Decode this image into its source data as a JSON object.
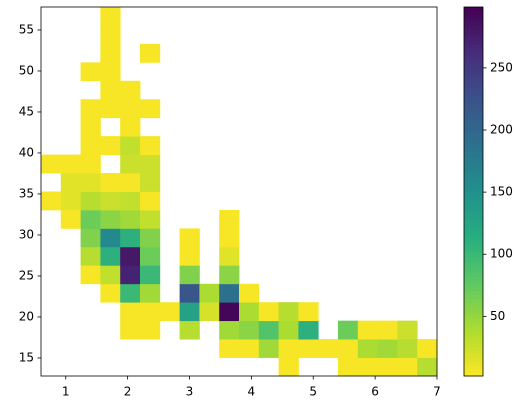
{
  "chart_data": {
    "type": "hist2d",
    "xbins": [
      0.6,
      0.92,
      1.24,
      1.56,
      1.88,
      2.2,
      2.52,
      2.84,
      3.16,
      3.48,
      3.8,
      4.12,
      4.44,
      4.76,
      5.08,
      5.4,
      5.72,
      6.04,
      6.36,
      6.68,
      7.0
    ],
    "ybins": [
      12.8,
      15.05,
      17.3,
      19.55,
      21.8,
      24.05,
      26.3,
      28.55,
      30.8,
      33.05,
      35.3,
      37.55,
      39.8,
      42.05,
      44.3,
      46.55,
      48.8,
      51.05,
      53.3,
      55.55,
      57.8
    ],
    "counts": [
      [
        null,
        null,
        null,
        null,
        null,
        null,
        null,
        null,
        null,
        null,
        null,
        null,
        5,
        null,
        null,
        5,
        5,
        5,
        5,
        35
      ],
      [
        null,
        null,
        null,
        null,
        null,
        null,
        null,
        null,
        null,
        5,
        5,
        45,
        5,
        5,
        5,
        5,
        40,
        45,
        35,
        5
      ],
      [
        null,
        null,
        null,
        null,
        5,
        5,
        null,
        35,
        null,
        45,
        55,
        85,
        40,
        110,
        null,
        70,
        5,
        5,
        25,
        null
      ],
      [
        null,
        null,
        null,
        null,
        5,
        5,
        5,
        130,
        20,
        295,
        40,
        5,
        35,
        5,
        null,
        null,
        null,
        null,
        null,
        null
      ],
      [
        null,
        null,
        null,
        5,
        100,
        45,
        null,
        220,
        40,
        190,
        5,
        null,
        null,
        null,
        null,
        null,
        null,
        null,
        null,
        null
      ],
      [
        null,
        null,
        5,
        30,
        270,
        100,
        null,
        60,
        null,
        55,
        null,
        null,
        null,
        null,
        null,
        null,
        null,
        null,
        null,
        null
      ],
      [
        null,
        null,
        35,
        110,
        280,
        70,
        null,
        5,
        null,
        15,
        null,
        null,
        null,
        null,
        null,
        null,
        null,
        null,
        null,
        null
      ],
      [
        null,
        null,
        60,
        160,
        110,
        60,
        null,
        5,
        null,
        5,
        null,
        null,
        null,
        null,
        null,
        null,
        null,
        null,
        null,
        null
      ],
      [
        null,
        5,
        70,
        55,
        45,
        30,
        null,
        null,
        null,
        5,
        null,
        null,
        null,
        null,
        null,
        null,
        null,
        null,
        null,
        null
      ],
      [
        5,
        15,
        35,
        25,
        30,
        5,
        null,
        null,
        null,
        null,
        null,
        null,
        null,
        null,
        null,
        null,
        null,
        null,
        null,
        null
      ],
      [
        null,
        15,
        15,
        5,
        5,
        25,
        null,
        null,
        null,
        null,
        null,
        null,
        null,
        null,
        null,
        null,
        null,
        null,
        null,
        null
      ],
      [
        5,
        5,
        5,
        null,
        25,
        25,
        null,
        null,
        null,
        null,
        null,
        null,
        null,
        null,
        null,
        null,
        null,
        null,
        null,
        null
      ],
      [
        null,
        null,
        5,
        5,
        30,
        5,
        null,
        null,
        null,
        null,
        null,
        null,
        null,
        null,
        null,
        null,
        null,
        null,
        null,
        null
      ],
      [
        null,
        null,
        5,
        null,
        5,
        null,
        null,
        null,
        null,
        null,
        null,
        null,
        null,
        null,
        null,
        null,
        null,
        null,
        null,
        null
      ],
      [
        null,
        null,
        5,
        5,
        5,
        5,
        null,
        null,
        null,
        null,
        null,
        null,
        null,
        null,
        null,
        null,
        null,
        null,
        null,
        null
      ],
      [
        null,
        null,
        null,
        5,
        5,
        null,
        null,
        null,
        null,
        null,
        null,
        null,
        null,
        null,
        null,
        null,
        null,
        null,
        null,
        null
      ],
      [
        null,
        null,
        5,
        5,
        null,
        null,
        null,
        null,
        null,
        null,
        null,
        null,
        null,
        null,
        null,
        null,
        null,
        null,
        null,
        null
      ],
      [
        null,
        null,
        null,
        5,
        null,
        5,
        null,
        null,
        null,
        null,
        null,
        null,
        null,
        null,
        null,
        null,
        null,
        null,
        null,
        null
      ],
      [
        null,
        null,
        null,
        5,
        null,
        null,
        null,
        null,
        null,
        null,
        null,
        null,
        null,
        null,
        null,
        null,
        null,
        null,
        null,
        null
      ],
      [
        null,
        null,
        null,
        5,
        null,
        null,
        null,
        null,
        null,
        null,
        null,
        null,
        null,
        null,
        null,
        null,
        null,
        null,
        null,
        null
      ]
    ],
    "xlim": [
      0.6,
      7.0
    ],
    "ylim": [
      12.8,
      57.8
    ],
    "xticks": [
      1,
      2,
      3,
      4,
      5,
      6,
      7
    ],
    "yticks": [
      15,
      20,
      25,
      30,
      35,
      40,
      45,
      50,
      55
    ],
    "clim": [
      2,
      299
    ],
    "cticks": [
      50,
      100,
      150,
      200,
      250
    ],
    "colormap": [
      "#fde725",
      "#addc30",
      "#5ec962",
      "#28ae80",
      "#21918c",
      "#2c728e",
      "#3b528b",
      "#472d7b",
      "#440154"
    ]
  }
}
